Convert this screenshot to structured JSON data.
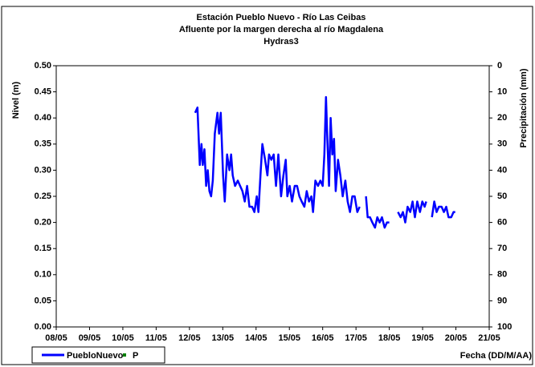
{
  "chart_data": {
    "type": "line",
    "title": "Estación Pueblo Nuevo - Río Las Ceibas",
    "subtitle": "Afluente por la margen derecha al río Magdalena",
    "annotation": "Hydras3",
    "ylabel": "Nivel (m)",
    "y2label": "Precipitación (mm)",
    "xlabel": "Fecha (DD/M/AA)",
    "xlim": [
      8,
      21
    ],
    "xticks": [
      {
        "value": 8,
        "label": "08/05"
      },
      {
        "value": 9,
        "label": "09/05"
      },
      {
        "value": 10,
        "label": "10/05"
      },
      {
        "value": 11,
        "label": "11/05"
      },
      {
        "value": 12,
        "label": "12/05"
      },
      {
        "value": 13,
        "label": "13/05"
      },
      {
        "value": 14,
        "label": "14/05"
      },
      {
        "value": 15,
        "label": "15/05"
      },
      {
        "value": 16,
        "label": "16/05"
      },
      {
        "value": 17,
        "label": "17/05"
      },
      {
        "value": 18,
        "label": "18/05"
      },
      {
        "value": 19,
        "label": "19/05"
      },
      {
        "value": 20,
        "label": "20/05"
      },
      {
        "value": 21,
        "label": "21/05"
      }
    ],
    "ylim": [
      0,
      0.5
    ],
    "yticks": [
      {
        "value": 0,
        "label": "0.00"
      },
      0.05,
      {
        "value": 0.1,
        "label": "0.10"
      },
      0.15,
      {
        "value": 0.2,
        "label": "0.20"
      },
      0.25,
      {
        "value": 0.3,
        "label": "0.30"
      },
      0.35,
      {
        "value": 0.4,
        "label": "0.40"
      },
      0.45,
      {
        "value": 0.5,
        "label": "0.50"
      }
    ],
    "y2lim": [
      100,
      0
    ],
    "y2ticks": [
      0,
      10,
      20,
      30,
      40,
      50,
      60,
      70,
      80,
      90,
      100
    ],
    "y2_inverted": true,
    "legend": "bottom-left",
    "x": [
      12.17,
      12.24,
      12.31,
      12.36,
      12.4,
      12.45,
      12.5,
      12.55,
      12.6,
      12.65,
      12.7,
      12.76,
      12.84,
      12.89,
      12.94,
      13.01,
      13.06,
      13.13,
      13.2,
      13.25,
      13.3,
      13.37,
      13.45,
      13.52,
      13.59,
      13.66,
      13.73,
      13.8,
      13.88,
      13.95,
      14.02,
      14.07,
      14.14,
      14.19,
      14.27,
      14.34,
      14.39,
      14.46,
      14.53,
      14.6,
      14.67,
      14.75,
      14.82,
      14.89,
      14.94,
      15.01,
      15.08,
      15.16,
      15.23,
      15.3,
      15.37,
      15.45,
      15.52,
      15.59,
      15.66,
      15.71,
      15.78,
      15.86,
      15.93,
      16.0,
      16.05,
      16.1,
      16.14,
      16.19,
      16.24,
      16.29,
      16.34,
      16.39,
      16.46,
      16.53,
      16.6,
      16.68,
      16.75,
      16.82,
      16.89,
      16.96,
      17.04,
      17.11,
      17.15,
      17.3,
      17.35,
      17.42,
      17.49,
      17.57,
      17.64,
      17.71,
      17.78,
      17.86,
      17.93,
      18.0,
      18.1,
      18.26,
      18.34,
      18.41,
      18.48,
      18.55,
      18.63,
      18.7,
      18.77,
      18.84,
      18.92,
      18.99,
      19.06,
      19.11,
      19.2,
      19.28,
      19.35,
      19.42,
      19.49,
      19.57,
      19.64,
      19.71,
      19.78,
      19.86,
      19.93,
      19.98
    ],
    "series": [
      {
        "name": "PuebloNuevo",
        "color": "#0000ff",
        "values": [
          0.41,
          0.42,
          0.31,
          0.35,
          0.31,
          0.34,
          0.27,
          0.3,
          0.26,
          0.25,
          0.28,
          0.37,
          0.41,
          0.37,
          0.41,
          0.29,
          0.24,
          0.33,
          0.3,
          0.33,
          0.29,
          0.27,
          0.28,
          0.27,
          0.26,
          0.24,
          0.27,
          0.23,
          0.23,
          0.22,
          0.25,
          0.22,
          0.3,
          0.35,
          0.32,
          0.29,
          0.33,
          0.32,
          0.33,
          0.27,
          0.33,
          0.25,
          0.29,
          0.32,
          0.25,
          0.27,
          0.24,
          0.27,
          0.27,
          0.25,
          0.24,
          0.23,
          0.26,
          0.24,
          0.25,
          0.22,
          0.28,
          0.27,
          0.28,
          0.27,
          0.33,
          0.44,
          0.36,
          0.27,
          0.4,
          0.33,
          0.36,
          0.26,
          0.32,
          0.29,
          0.25,
          0.28,
          0.24,
          0.22,
          0.25,
          0.25,
          0.22,
          0.23,
          null,
          0.25,
          0.21,
          0.21,
          0.2,
          0.19,
          0.21,
          0.2,
          0.21,
          0.19,
          0.2,
          0.2,
          null,
          0.22,
          0.21,
          0.22,
          0.2,
          0.23,
          0.22,
          0.24,
          0.21,
          0.24,
          0.22,
          0.24,
          0.23,
          0.24,
          null,
          0.21,
          0.24,
          0.22,
          0.23,
          0.23,
          0.22,
          0.23,
          0.21,
          0.21,
          0.22,
          0.22
        ]
      },
      {
        "name": "P",
        "color": "#008000",
        "axis": "y2",
        "values": [
          null,
          null,
          null,
          null,
          null,
          null,
          null,
          null,
          null,
          null,
          null,
          null,
          null,
          null,
          null,
          null,
          null,
          null,
          null,
          null,
          null,
          null,
          null,
          null,
          null,
          null,
          null,
          null,
          null,
          null,
          null,
          null,
          null,
          null,
          null,
          null,
          null,
          null,
          null,
          null,
          null,
          null,
          null,
          null,
          null,
          null,
          null,
          null,
          null,
          null,
          null,
          null,
          null,
          null,
          null,
          null,
          null,
          null,
          null,
          null,
          null,
          null,
          null,
          null,
          null,
          null,
          null,
          null,
          null,
          null,
          null,
          null,
          null,
          null,
          null,
          null,
          null,
          null,
          null,
          null,
          null,
          null,
          null,
          null,
          null,
          null,
          null,
          null,
          null,
          null,
          null,
          null,
          null,
          null,
          null,
          null,
          null,
          null,
          null,
          null,
          null,
          null,
          null,
          null,
          null,
          null,
          null,
          null,
          null,
          null,
          null,
          null,
          null,
          null,
          null,
          null
        ]
      }
    ]
  }
}
